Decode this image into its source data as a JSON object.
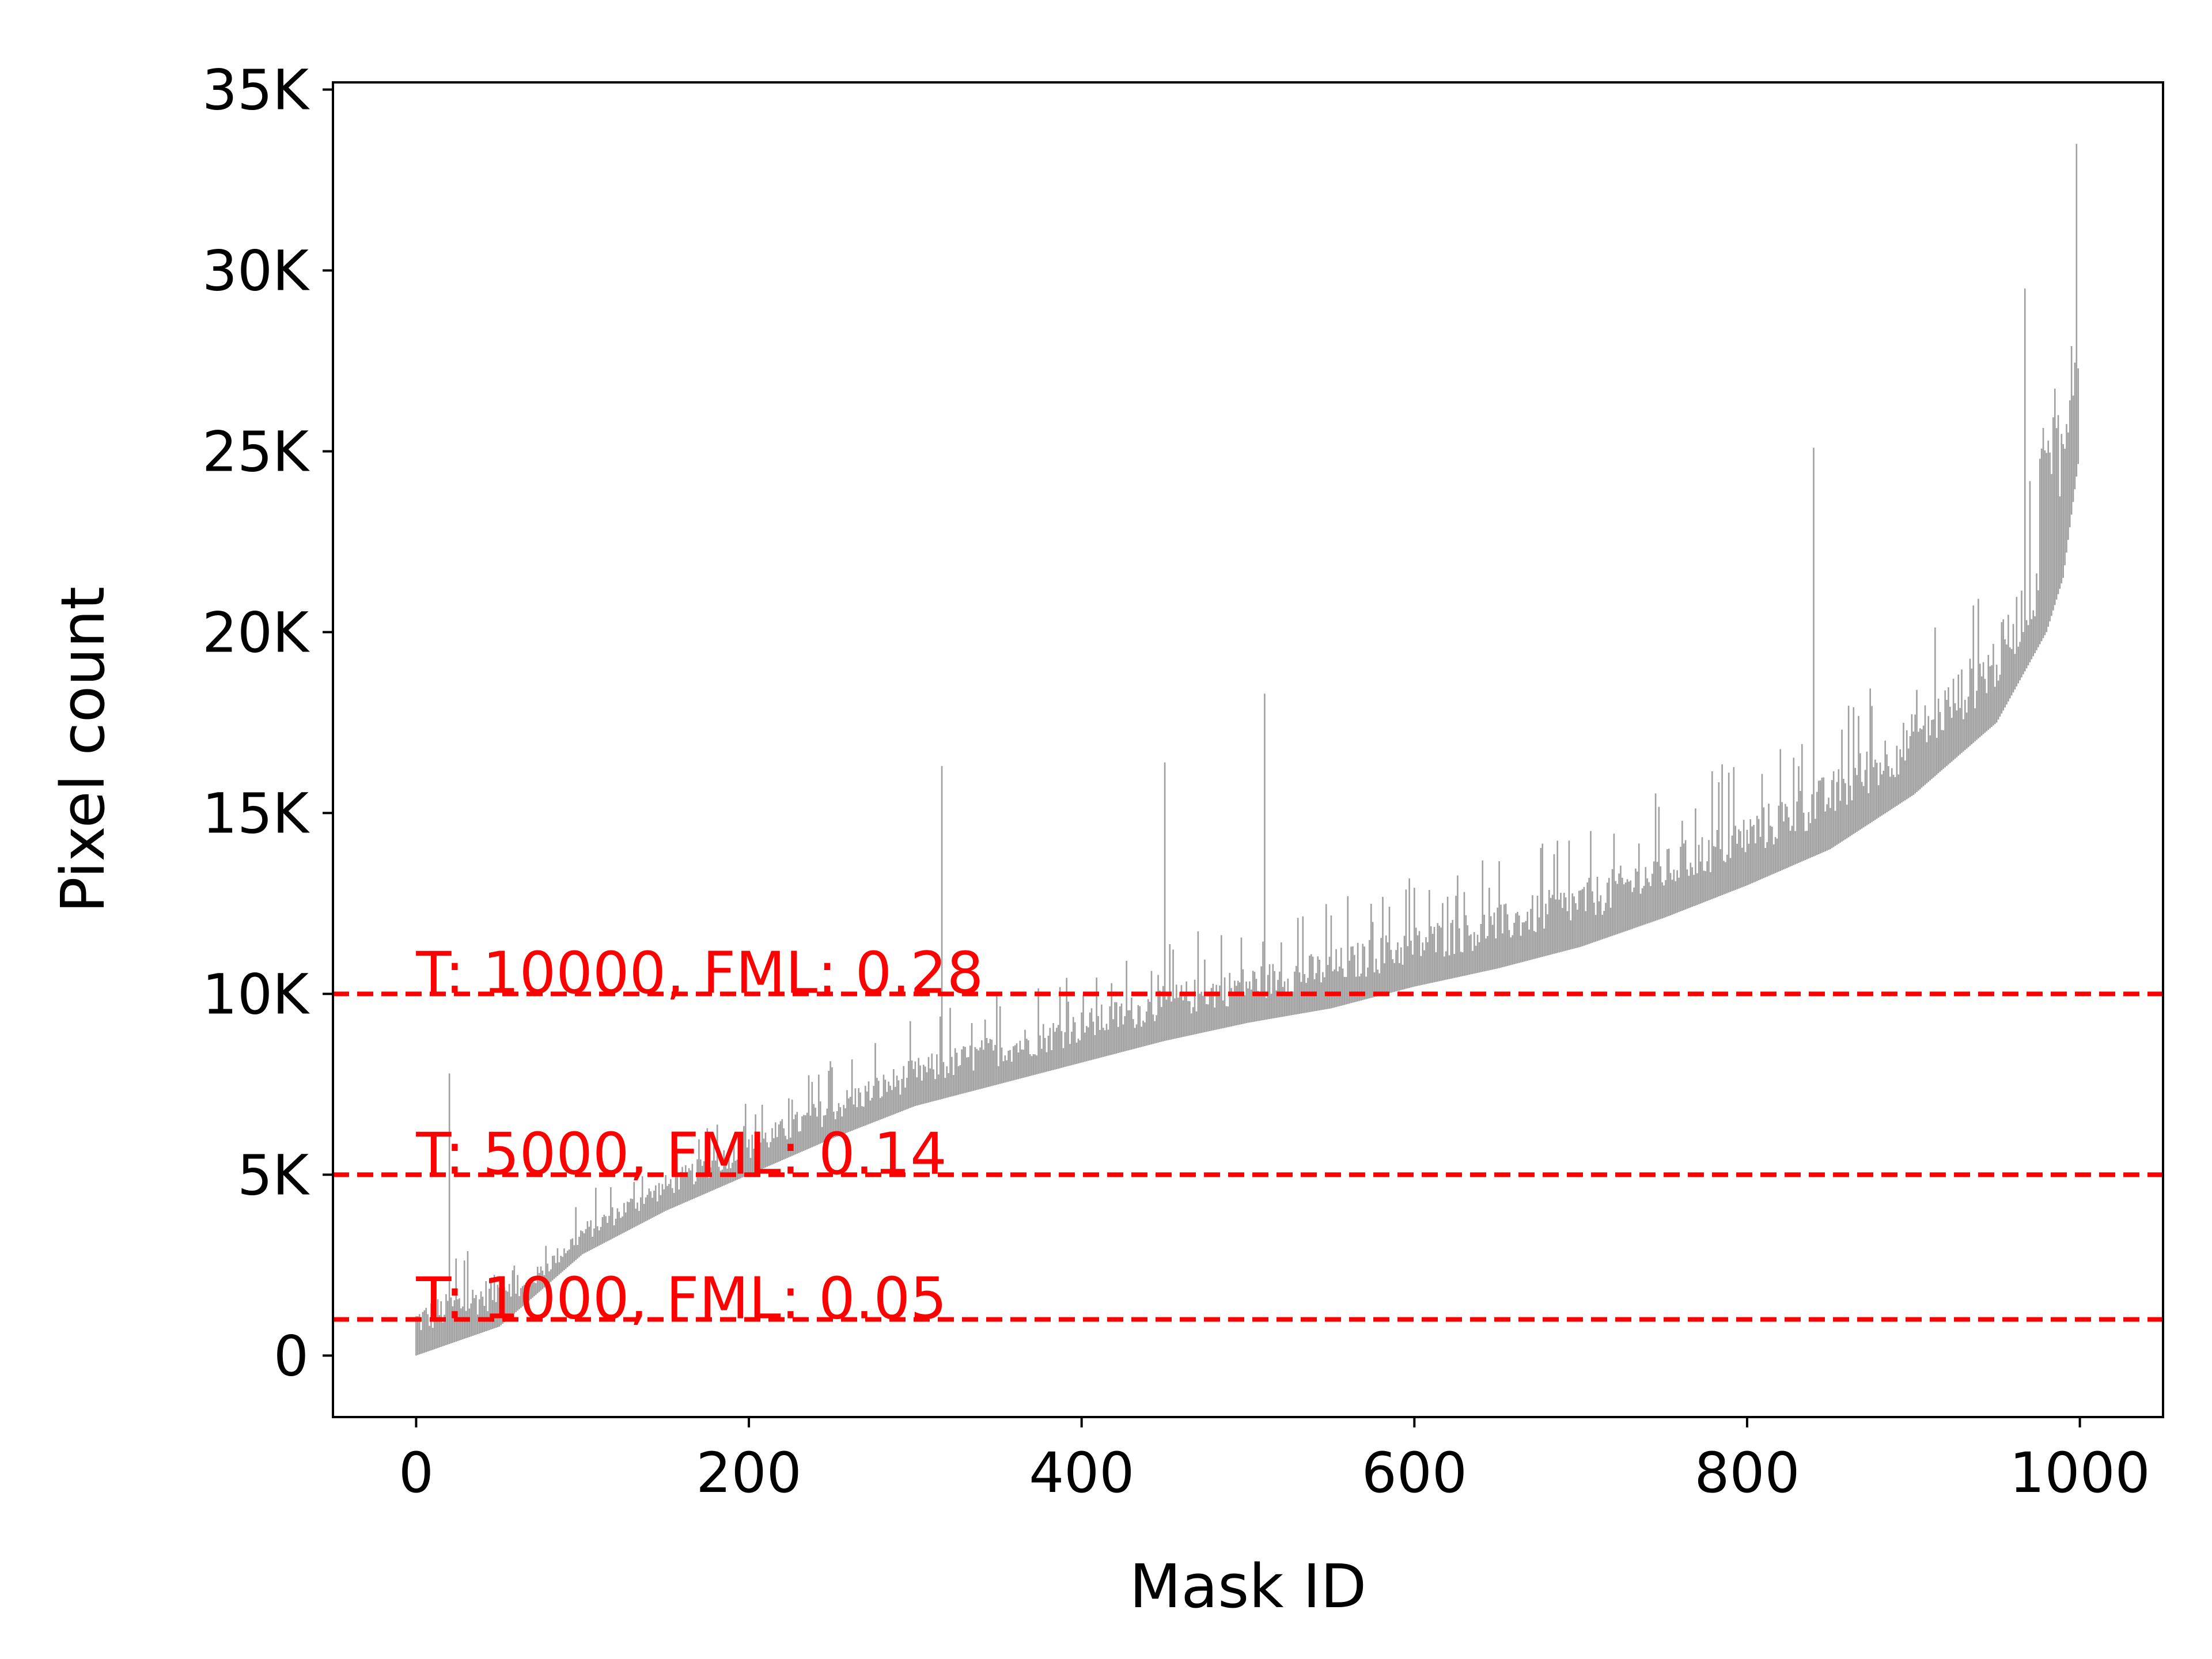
{
  "chart_data": {
    "type": "bar",
    "title": "",
    "xlabel": "Mask ID",
    "ylabel": "Pixel count",
    "xlim": [
      -50,
      1050
    ],
    "ylim": [
      -1700,
      35200
    ],
    "xticks": [
      {
        "value": 0,
        "label": "0"
      },
      {
        "value": 200,
        "label": "200"
      },
      {
        "value": 400,
        "label": "400"
      },
      {
        "value": 600,
        "label": "600"
      },
      {
        "value": 800,
        "label": "800"
      },
      {
        "value": 1000,
        "label": "1000"
      }
    ],
    "yticks": [
      {
        "value": 0,
        "label": "0"
      },
      {
        "value": 5000,
        "label": "5K"
      },
      {
        "value": 10000,
        "label": "10K"
      },
      {
        "value": 15000,
        "label": "15K"
      },
      {
        "value": 20000,
        "label": "20K"
      },
      {
        "value": 25000,
        "label": "25K"
      },
      {
        "value": 30000,
        "label": "30K"
      },
      {
        "value": 35000,
        "label": "35K"
      }
    ],
    "grid": false,
    "bar_color": "#a0a0a0",
    "series": {
      "n_masks": 1000,
      "sorted_pixel_counts_profile": [
        {
          "mask_id": 0,
          "pixel_count": 0
        },
        {
          "mask_id": 50,
          "pixel_count": 800
        },
        {
          "mask_id": 100,
          "pixel_count": 2800
        },
        {
          "mask_id": 150,
          "pixel_count": 4000
        },
        {
          "mask_id": 200,
          "pixel_count": 5000
        },
        {
          "mask_id": 250,
          "pixel_count": 6000
        },
        {
          "mask_id": 300,
          "pixel_count": 6900
        },
        {
          "mask_id": 350,
          "pixel_count": 7500
        },
        {
          "mask_id": 400,
          "pixel_count": 8100
        },
        {
          "mask_id": 450,
          "pixel_count": 8700
        },
        {
          "mask_id": 500,
          "pixel_count": 9200
        },
        {
          "mask_id": 550,
          "pixel_count": 9600
        },
        {
          "mask_id": 600,
          "pixel_count": 10200
        },
        {
          "mask_id": 650,
          "pixel_count": 10700
        },
        {
          "mask_id": 700,
          "pixel_count": 11300
        },
        {
          "mask_id": 750,
          "pixel_count": 12100
        },
        {
          "mask_id": 800,
          "pixel_count": 13000
        },
        {
          "mask_id": 850,
          "pixel_count": 14000
        },
        {
          "mask_id": 900,
          "pixel_count": 15500
        },
        {
          "mask_id": 950,
          "pixel_count": 17500
        },
        {
          "mask_id": 980,
          "pixel_count": 20000
        },
        {
          "mask_id": 990,
          "pixel_count": 21500
        },
        {
          "mask_id": 1000,
          "pixel_count": 25000
        }
      ],
      "notable_peaks": [
        {
          "mask_id": 20,
          "pixel_count": 7800
        },
        {
          "mask_id": 316,
          "pixel_count": 16300
        },
        {
          "mask_id": 450,
          "pixel_count": 16400
        },
        {
          "mask_id": 510,
          "pixel_count": 18300
        },
        {
          "mask_id": 840,
          "pixel_count": 25100
        },
        {
          "mask_id": 967,
          "pixel_count": 29500
        },
        {
          "mask_id": 998,
          "pixel_count": 33500
        }
      ]
    },
    "thresholds": [
      {
        "value": 10000,
        "label": "T: 10000, FML: 0.28",
        "color": "#ff0000",
        "style": "dashed"
      },
      {
        "value": 5000,
        "label": "T: 5000, FML: 0.14",
        "color": "#ff0000",
        "style": "dashed"
      },
      {
        "value": 1000,
        "label": "T: 1000, FML: 0.05",
        "color": "#ff0000",
        "style": "dashed"
      }
    ]
  }
}
